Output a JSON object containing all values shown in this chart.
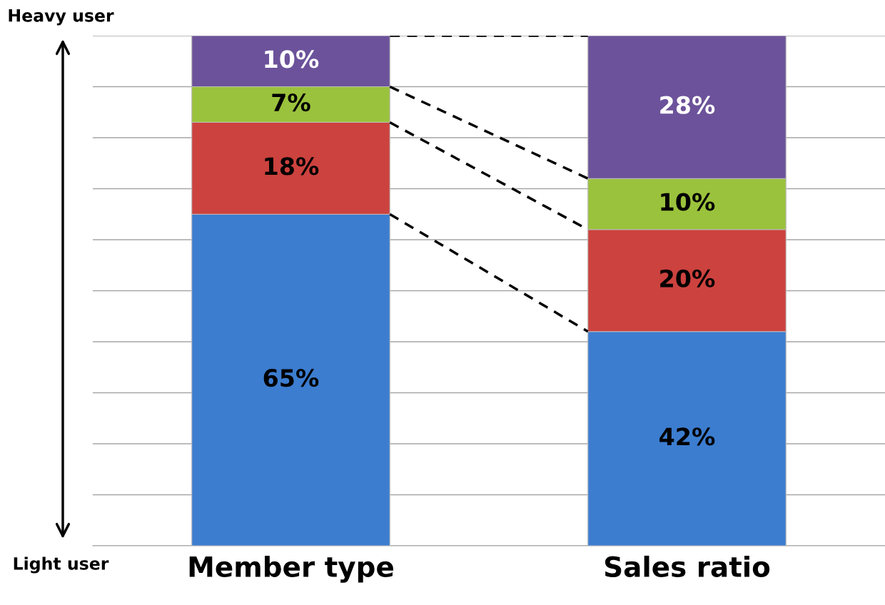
{
  "chart_data": {
    "type": "bar",
    "stacked": true,
    "categories": [
      "Member type",
      "Sales ratio"
    ],
    "series": [
      {
        "color": "#3c7dd0",
        "values": [
          65,
          42
        ],
        "value_labels": [
          "65%",
          "42%"
        ]
      },
      {
        "color": "#cc423e",
        "values": [
          18,
          20
        ],
        "value_labels": [
          "18%",
          "20%"
        ]
      },
      {
        "color": "#9bc23c",
        "values": [
          7,
          10
        ],
        "value_labels": [
          "7%",
          "10%"
        ]
      },
      {
        "color": "#6c529a",
        "values": [
          10,
          28
        ],
        "value_labels": [
          "10%",
          "28%"
        ]
      }
    ],
    "ylim": [
      0,
      100
    ],
    "yticks": [
      {
        "value": 0,
        "label": null
      },
      {
        "value": 10,
        "label": null
      },
      {
        "value": 20,
        "label": null
      },
      {
        "value": 30,
        "label": null
      },
      {
        "value": 40,
        "label": null
      },
      {
        "value": 50,
        "label": null
      },
      {
        "value": 60,
        "label": null
      },
      {
        "value": 70,
        "label": null
      },
      {
        "value": 80,
        "label": null
      },
      {
        "value": 90,
        "label": null
      },
      {
        "value": 100,
        "label": null
      }
    ],
    "tick_labels": "x",
    "grid": "y",
    "legend": false,
    "annotations": [
      "Heavy user",
      "Light user"
    ]
  }
}
